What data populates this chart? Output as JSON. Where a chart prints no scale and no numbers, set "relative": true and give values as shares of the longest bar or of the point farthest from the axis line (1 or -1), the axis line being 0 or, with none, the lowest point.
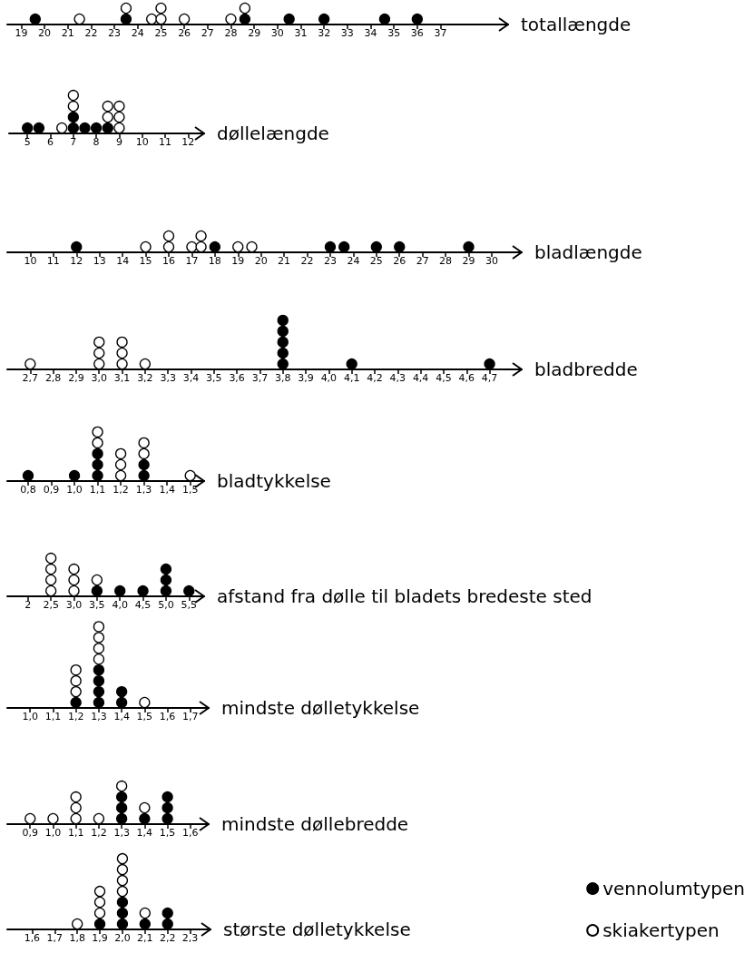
{
  "chart_data": [
    {
      "type": "scatter",
      "relative": true,
      "xlabel": "totallængde",
      "marker": "circle",
      "tick_labels": "x",
      "grid": false,
      "legend": false,
      "xlim": [
        18.4,
        39.9
      ],
      "xticks": [
        19,
        20,
        21,
        22,
        23,
        24,
        25,
        26,
        27,
        28,
        29,
        30,
        31,
        32,
        33,
        34,
        35,
        36,
        37
      ],
      "series": [
        {
          "color": "#000000",
          "x": [
            19.6,
            23.5,
            28.6,
            30.5,
            32,
            34.6,
            36
          ],
          "values": [
            0.333,
            0.333,
            0.333,
            0.333,
            0.333,
            0.333,
            0.333
          ]
        },
        {
          "color": "#ffffff",
          "x": [
            21.5,
            23.5,
            24.6,
            25,
            25,
            26,
            28,
            28.6
          ],
          "values": [
            0.333,
            1,
            0.333,
            0.333,
            1,
            0.333,
            0.333,
            1
          ]
        }
      ]
    },
    {
      "type": "scatter",
      "relative": true,
      "xlabel": "døllelængde",
      "marker": "circle",
      "tick_labels": "x",
      "grid": false,
      "legend": false,
      "xlim": [
        4.2,
        12.7
      ],
      "xticks": [
        5,
        6,
        7,
        8,
        9,
        10,
        11,
        12
      ],
      "series": [
        {
          "color": "#000000",
          "x": [
            5,
            5.5,
            7,
            7,
            7.5,
            8,
            8.5
          ],
          "values": [
            0.143,
            0.143,
            0.143,
            0.429,
            0.143,
            0.143,
            0.143
          ]
        },
        {
          "color": "#ffffff",
          "x": [
            6.5,
            7,
            7,
            8.5,
            8.5,
            9,
            9,
            9
          ],
          "values": [
            0.143,
            0.714,
            1,
            0.429,
            0.714,
            0.143,
            0.429,
            0.714
          ]
        }
      ]
    },
    {
      "type": "scatter",
      "relative": true,
      "xlabel": "bladlængde",
      "marker": "circle",
      "tick_labels": "x",
      "grid": false,
      "legend": false,
      "xlim": [
        9,
        31.3
      ],
      "xticks": [
        10,
        11,
        12,
        13,
        14,
        15,
        16,
        17,
        18,
        19,
        20,
        21,
        22,
        23,
        24,
        25,
        26,
        27,
        28,
        29,
        30
      ],
      "series": [
        {
          "color": "#000000",
          "x": [
            12,
            18,
            23,
            23.6,
            25,
            26,
            29
          ],
          "values": [
            0.333,
            0.333,
            0.333,
            0.333,
            0.333,
            0.333,
            0.333
          ]
        },
        {
          "color": "#ffffff",
          "x": [
            15,
            16,
            16,
            17,
            17.4,
            17.4,
            19,
            19.6
          ],
          "values": [
            0.333,
            0.333,
            1,
            0.333,
            0.333,
            1,
            0.333,
            0.333
          ]
        }
      ]
    },
    {
      "type": "scatter",
      "relative": true,
      "xlabel": "bladbredde",
      "marker": "circle",
      "tick_labels": "x",
      "grid": false,
      "legend": false,
      "xlim": [
        2.6,
        4.84
      ],
      "xticks": [
        {
          "value": 2.7,
          "label": "2,7"
        },
        {
          "value": 2.8,
          "label": "2,8"
        },
        {
          "value": 2.9,
          "label": "2,9"
        },
        {
          "value": 3.0,
          "label": "3,0"
        },
        {
          "value": 3.1,
          "label": "3,1"
        },
        {
          "value": 3.2,
          "label": "3,2"
        },
        {
          "value": 3.3,
          "label": "3,3"
        },
        {
          "value": 3.4,
          "label": "3,4"
        },
        {
          "value": 3.5,
          "label": "3,5"
        },
        {
          "value": 3.6,
          "label": "3,6"
        },
        {
          "value": 3.7,
          "label": "3,7"
        },
        {
          "value": 3.8,
          "label": "3,8"
        },
        {
          "value": 3.9,
          "label": "3,9"
        },
        {
          "value": 4.0,
          "label": "4,0"
        },
        {
          "value": 4.1,
          "label": "4,1"
        },
        {
          "value": 4.2,
          "label": "4,2"
        },
        {
          "value": 4.3,
          "label": "4,3"
        },
        {
          "value": 4.4,
          "label": "4,4"
        },
        {
          "value": 4.5,
          "label": "4,5"
        },
        {
          "value": 4.6,
          "label": "4,6"
        },
        {
          "value": 4.7,
          "label": "4,7"
        }
      ],
      "series": [
        {
          "color": "#000000",
          "x": [
            3.8,
            3.8,
            3.8,
            3.8,
            3.8,
            4.1,
            4.7
          ],
          "values": [
            0.111,
            0.333,
            0.556,
            0.778,
            1,
            0.111,
            0.111
          ]
        },
        {
          "color": "#ffffff",
          "x": [
            2.7,
            3.0,
            3.0,
            3.0,
            3.1,
            3.1,
            3.1,
            3.2
          ],
          "values": [
            0.111,
            0.111,
            0.333,
            0.556,
            0.111,
            0.333,
            0.556,
            0.111
          ]
        }
      ]
    },
    {
      "type": "scatter",
      "relative": true,
      "xlabel": "bladtykkelse",
      "marker": "circle",
      "tick_labels": "x",
      "grid": false,
      "legend": false,
      "xlim": [
        0.71,
        1.56
      ],
      "xticks": [
        {
          "value": 0.8,
          "label": "0,8"
        },
        {
          "value": 0.9,
          "label": "0,9"
        },
        {
          "value": 1.0,
          "label": "1,0"
        },
        {
          "value": 1.1,
          "label": "1,1"
        },
        {
          "value": 1.2,
          "label": "1,2"
        },
        {
          "value": 1.3,
          "label": "1,3"
        },
        {
          "value": 1.4,
          "label": "1,4"
        },
        {
          "value": 1.5,
          "label": "1,5"
        }
      ],
      "series": [
        {
          "color": "#000000",
          "x": [
            0.8,
            1.0,
            1.1,
            1.1,
            1.1,
            1.3,
            1.3
          ],
          "values": [
            0.111,
            0.111,
            0.111,
            0.333,
            0.556,
            0.111,
            0.333
          ]
        },
        {
          "color": "#ffffff",
          "x": [
            1.1,
            1.1,
            1.2,
            1.2,
            1.2,
            1.3,
            1.3,
            1.5
          ],
          "values": [
            0.778,
            1,
            0.111,
            0.333,
            0.556,
            0.556,
            0.778,
            0.111
          ]
        }
      ]
    },
    {
      "type": "scatter",
      "relative": true,
      "xlabel": "afstand fra dølle til bladets bredeste sted",
      "marker": "circle",
      "tick_labels": "x",
      "grid": false,
      "legend": false,
      "xlim": [
        1.55,
        5.83
      ],
      "xticks": [
        2,
        {
          "value": 2.5,
          "label": "2,5"
        },
        {
          "value": 3.0,
          "label": "3,0"
        },
        {
          "value": 3.5,
          "label": "3,5"
        },
        {
          "value": 4.0,
          "label": "4,0"
        },
        {
          "value": 4.5,
          "label": "4,5"
        },
        {
          "value": 5.0,
          "label": "5,0"
        },
        {
          "value": 5.5,
          "label": "5,5"
        }
      ],
      "series": [
        {
          "color": "#000000",
          "x": [
            3.5,
            4.0,
            4.5,
            5.0,
            5.0,
            5.0,
            5.5
          ],
          "values": [
            0.143,
            0.143,
            0.143,
            0.143,
            0.429,
            0.714,
            0.143
          ]
        },
        {
          "color": "#ffffff",
          "x": [
            2.5,
            2.5,
            2.5,
            2.5,
            3.0,
            3.0,
            3.0,
            3.5
          ],
          "values": [
            0.143,
            0.429,
            0.714,
            1,
            0.143,
            0.429,
            0.714,
            0.429
          ]
        }
      ]
    },
    {
      "type": "scatter",
      "relative": true,
      "xlabel": "mindste dølletykkelse",
      "marker": "circle",
      "tick_labels": "x",
      "grid": false,
      "legend": false,
      "xlim": [
        0.9,
        1.78
      ],
      "xticks": [
        {
          "value": 1.0,
          "label": "1,0"
        },
        {
          "value": 1.1,
          "label": "1,1"
        },
        {
          "value": 1.2,
          "label": "1,2"
        },
        {
          "value": 1.3,
          "label": "1,3"
        },
        {
          "value": 1.4,
          "label": "1,4"
        },
        {
          "value": 1.5,
          "label": "1,5"
        },
        {
          "value": 1.6,
          "label": "1,6"
        },
        {
          "value": 1.7,
          "label": "1,7"
        }
      ],
      "series": [
        {
          "color": "#000000",
          "x": [
            1.2,
            1.3,
            1.3,
            1.3,
            1.3,
            1.4,
            1.4
          ],
          "values": [
            0.067,
            0.067,
            0.2,
            0.333,
            0.467,
            0.067,
            0.2
          ]
        },
        {
          "color": "#ffffff",
          "x": [
            1.2,
            1.2,
            1.2,
            1.3,
            1.3,
            1.3,
            1.3,
            1.5
          ],
          "values": [
            0.2,
            0.333,
            0.467,
            0.6,
            0.733,
            0.867,
            1,
            0.067
          ]
        }
      ]
    },
    {
      "type": "scatter",
      "relative": true,
      "xlabel": "mindste døllebredde",
      "marker": "circle",
      "tick_labels": "x",
      "grid": false,
      "legend": false,
      "xlim": [
        0.8,
        1.68
      ],
      "xticks": [
        {
          "value": 0.9,
          "label": "0,9"
        },
        {
          "value": 1.0,
          "label": "1,0"
        },
        {
          "value": 1.1,
          "label": "1,1"
        },
        {
          "value": 1.2,
          "label": "1,2"
        },
        {
          "value": 1.3,
          "label": "1,3"
        },
        {
          "value": 1.4,
          "label": "1,4"
        },
        {
          "value": 1.5,
          "label": "1,5"
        },
        {
          "value": 1.6,
          "label": "1,6"
        }
      ],
      "series": [
        {
          "color": "#000000",
          "x": [
            1.3,
            1.3,
            1.3,
            1.4,
            1.5,
            1.5,
            1.5
          ],
          "values": [
            0.143,
            0.429,
            0.714,
            0.143,
            0.143,
            0.429,
            0.714
          ]
        },
        {
          "color": "#ffffff",
          "x": [
            0.9,
            1.0,
            1.1,
            1.1,
            1.1,
            1.2,
            1.3,
            1.4
          ],
          "values": [
            0.143,
            0.143,
            0.143,
            0.429,
            0.714,
            0.143,
            1,
            0.429
          ]
        }
      ]
    },
    {
      "type": "scatter",
      "relative": true,
      "xlabel": "største dølletykkelse",
      "marker": "circle",
      "tick_labels": "x",
      "grid": false,
      "legend": "bottom right",
      "xlim": [
        1.49,
        2.39
      ],
      "xticks": [
        {
          "value": 1.6,
          "label": "1,6"
        },
        {
          "value": 1.7,
          "label": "1,7"
        },
        {
          "value": 1.8,
          "label": "1,8"
        },
        {
          "value": 1.9,
          "label": "1,9"
        },
        {
          "value": 2.0,
          "label": "2,0"
        },
        {
          "value": 2.1,
          "label": "2,1"
        },
        {
          "value": 2.2,
          "label": "2,2"
        },
        {
          "value": 2.3,
          "label": "2,3"
        }
      ],
      "series": [
        {
          "name": "vennolumtypen",
          "color": "#000000",
          "x": [
            1.9,
            2.0,
            2.0,
            2.0,
            2.1,
            2.2,
            2.2
          ],
          "values": [
            0.077,
            0.077,
            0.231,
            0.385,
            0.077,
            0.077,
            0.231
          ]
        },
        {
          "name": "skiakertypen",
          "color": "#ffffff",
          "x": [
            1.8,
            1.9,
            1.9,
            1.9,
            2.0,
            2.0,
            2.0,
            2.0,
            2.1
          ],
          "values": [
            0.077,
            0.231,
            0.385,
            0.538,
            0.538,
            0.692,
            0.846,
            1,
            0.231
          ]
        }
      ]
    }
  ]
}
